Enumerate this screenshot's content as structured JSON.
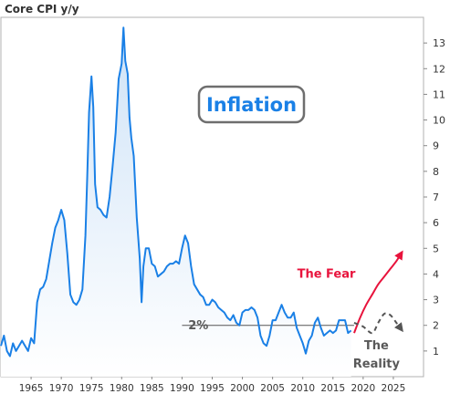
{
  "chart_data": {
    "type": "area",
    "title": "Core CPI y/y",
    "xlabel": "",
    "ylabel": "",
    "xlim": [
      1960,
      2030
    ],
    "ylim": [
      0,
      14
    ],
    "y_ticks": [
      1,
      2,
      3,
      4,
      5,
      6,
      7,
      8,
      9,
      10,
      11,
      12,
      13
    ],
    "x_ticks": [
      1965,
      1970,
      1975,
      1980,
      1985,
      1990,
      1995,
      2000,
      2005,
      2010,
      2015,
      2020,
      2025
    ],
    "grid": false,
    "line_color": "#1a80e6",
    "fill_color_top": "#cfe3f7",
    "fill_color_bottom": "#ffffff",
    "series": [
      {
        "x": [
          1957.5,
          1958.0,
          1958.5,
          1959.0,
          1959.5,
          1960.0,
          1960.5,
          1961.0,
          1961.5,
          1962.0,
          1962.5,
          1963.0,
          1963.5,
          1964.0,
          1964.5,
          1965.0,
          1965.5,
          1966.0,
          1966.5,
          1967.0,
          1967.5,
          1968.0,
          1968.5,
          1969.0,
          1969.5,
          1970.0,
          1970.5,
          1971.0,
          1971.5,
          1972.0,
          1972.5,
          1973.0,
          1973.5,
          1974.0,
          1974.3,
          1974.6,
          1975.0,
          1975.3,
          1975.6,
          1976.0,
          1976.5,
          1977.0,
          1977.5,
          1978.0,
          1978.5,
          1979.0,
          1979.5,
          1980.0,
          1980.3,
          1980.6,
          1981.0,
          1981.3,
          1981.6,
          1982.0,
          1982.5,
          1983.0,
          1983.3,
          1983.6,
          1984.0,
          1984.5,
          1985.0,
          1985.5,
          1986.0,
          1986.5,
          1987.0,
          1987.5,
          1988.0,
          1988.5,
          1989.0,
          1989.5,
          1990.0,
          1990.5,
          1991.0,
          1991.5,
          1992.0,
          1992.5,
          1993.0,
          1993.5,
          1994.0,
          1994.5,
          1995.0,
          1995.5,
          1996.0,
          1996.5,
          1997.0,
          1997.5,
          1998.0,
          1998.5,
          1999.0,
          1999.5,
          2000.0,
          2000.5,
          2001.0,
          2001.5,
          2002.0,
          2002.5,
          2003.0,
          2003.5,
          2004.0,
          2004.5,
          2005.0,
          2005.5,
          2006.0,
          2006.5,
          2007.0,
          2007.5,
          2008.0,
          2008.5,
          2009.0,
          2009.5,
          2010.0,
          2010.5,
          2011.0,
          2011.5,
          2012.0,
          2012.5,
          2013.0,
          2013.5,
          2014.0,
          2014.5,
          2015.0,
          2015.5,
          2016.0,
          2016.5,
          2017.0,
          2017.5,
          2018.0
        ],
        "values": [
          2.5,
          2.4,
          1.7,
          1.4,
          0.8,
          1.2,
          1.6,
          1.0,
          0.8,
          1.3,
          1.0,
          1.2,
          1.4,
          1.2,
          1.0,
          1.5,
          1.3,
          2.9,
          3.4,
          3.5,
          3.8,
          4.5,
          5.2,
          5.8,
          6.1,
          6.5,
          6.1,
          4.8,
          3.2,
          2.9,
          2.8,
          3.0,
          3.4,
          5.5,
          7.8,
          10.3,
          11.7,
          10.5,
          7.5,
          6.6,
          6.5,
          6.3,
          6.2,
          7.0,
          8.2,
          9.5,
          11.6,
          12.2,
          13.6,
          12.3,
          11.8,
          10.1,
          9.3,
          8.6,
          6.2,
          4.6,
          2.9,
          4.3,
          5.0,
          5.0,
          4.4,
          4.3,
          3.9,
          4.0,
          4.1,
          4.3,
          4.4,
          4.4,
          4.5,
          4.4,
          5.0,
          5.5,
          5.2,
          4.3,
          3.6,
          3.4,
          3.2,
          3.1,
          2.8,
          2.8,
          3.0,
          2.9,
          2.7,
          2.6,
          2.5,
          2.3,
          2.2,
          2.4,
          2.1,
          2.0,
          2.5,
          2.6,
          2.6,
          2.7,
          2.6,
          2.3,
          1.6,
          1.3,
          1.2,
          1.6,
          2.2,
          2.2,
          2.5,
          2.8,
          2.5,
          2.3,
          2.3,
          2.5,
          1.9,
          1.6,
          1.3,
          0.9,
          1.4,
          1.6,
          2.1,
          2.3,
          1.9,
          1.6,
          1.7,
          1.8,
          1.7,
          1.8,
          2.2,
          2.2,
          2.2,
          1.7,
          1.8
        ]
      }
    ],
    "reference_line": {
      "y": 2,
      "label": "2%"
    },
    "badge": {
      "text": "Inflation",
      "color": "#1a80e6"
    },
    "annotations": [
      {
        "text": "The Fear",
        "color": "#e8133c",
        "x": [
          2018.5,
          2019.5,
          2020.5,
          2021.5,
          2022.5,
          2023.5,
          2024.5,
          2025.5,
          2026.3
        ],
        "y": [
          1.7,
          2.3,
          2.8,
          3.2,
          3.6,
          3.9,
          4.2,
          4.5,
          4.8
        ]
      },
      {
        "text": "The Reality",
        "color": "#555555",
        "x": [
          2018.5,
          2020.0,
          2021.5,
          2022.5,
          2023.5,
          2024.5,
          2025.5,
          2026.3
        ],
        "y": [
          2.1,
          1.95,
          1.7,
          2.1,
          2.45,
          2.4,
          2.1,
          1.85
        ]
      }
    ]
  }
}
